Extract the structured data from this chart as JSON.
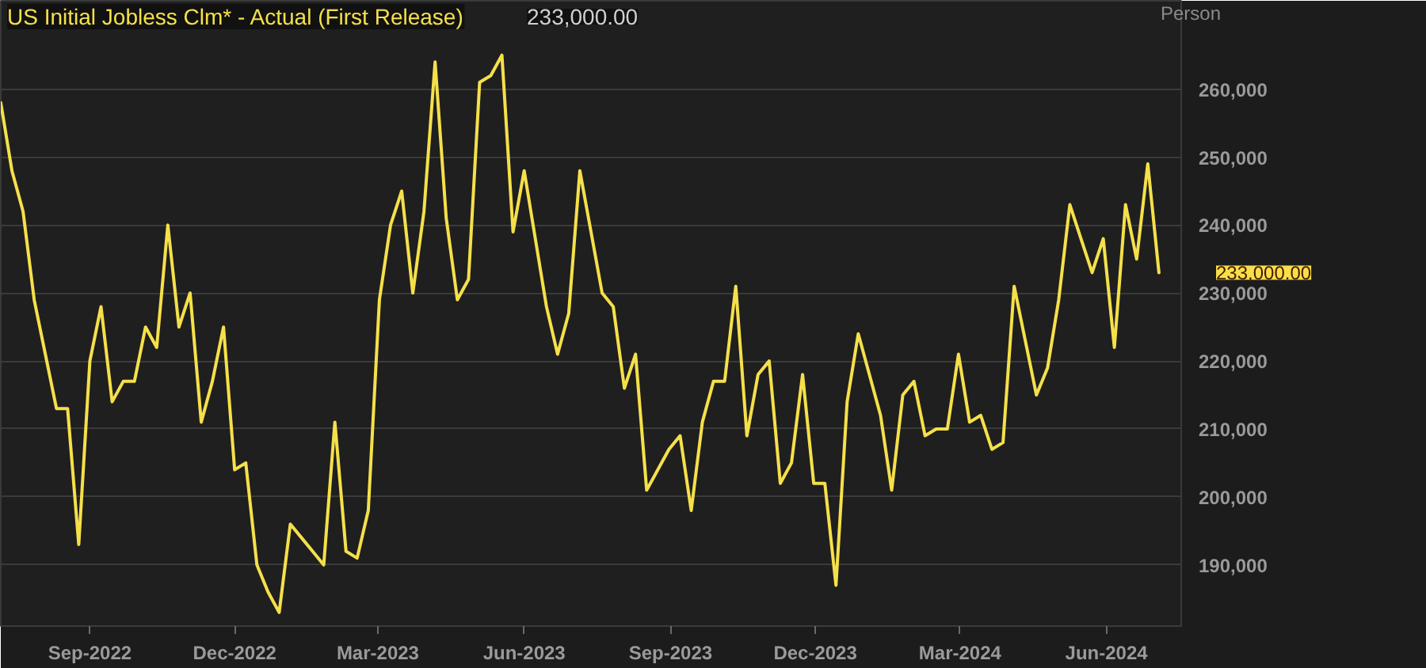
{
  "chart_data": {
    "type": "line",
    "title": "US Initial Jobless Clm* - Actual (First Release)",
    "subtitle": "233,000.00",
    "ylabel": "Person",
    "x": [
      "2022-07-07",
      "2022-07-14",
      "2022-07-21",
      "2022-07-28",
      "2022-08-04",
      "2022-08-11",
      "2022-08-18",
      "2022-08-25",
      "2022-09-01",
      "2022-09-08",
      "2022-09-15",
      "2022-09-22",
      "2022-09-29",
      "2022-10-06",
      "2022-10-13",
      "2022-10-20",
      "2022-10-27",
      "2022-11-03",
      "2022-11-10",
      "2022-11-17",
      "2022-11-24",
      "2022-12-01",
      "2022-12-08",
      "2022-12-15",
      "2022-12-22",
      "2022-12-29",
      "2023-01-05",
      "2023-01-12",
      "2023-01-19",
      "2023-01-26",
      "2023-02-02",
      "2023-02-09",
      "2023-02-16",
      "2023-02-23",
      "2023-03-02",
      "2023-03-09",
      "2023-03-16",
      "2023-03-23",
      "2023-03-30",
      "2023-04-06",
      "2023-04-13",
      "2023-04-20",
      "2023-04-27",
      "2023-05-04",
      "2023-05-11",
      "2023-05-18",
      "2023-05-25",
      "2023-06-01",
      "2023-06-08",
      "2023-06-15",
      "2023-06-22",
      "2023-06-29",
      "2023-07-06",
      "2023-07-13",
      "2023-07-20",
      "2023-07-27",
      "2023-08-03",
      "2023-08-10",
      "2023-08-17",
      "2023-08-24",
      "2023-08-31",
      "2023-09-07",
      "2023-09-14",
      "2023-09-21",
      "2023-09-28",
      "2023-10-05",
      "2023-10-12",
      "2023-10-19",
      "2023-10-26",
      "2023-11-02",
      "2023-11-09",
      "2023-11-16",
      "2023-11-23",
      "2023-11-30",
      "2023-12-07",
      "2023-12-14",
      "2023-12-21",
      "2023-12-28",
      "2024-01-04",
      "2024-01-11",
      "2024-01-18",
      "2024-01-25",
      "2024-02-01",
      "2024-02-08",
      "2024-02-15",
      "2024-02-22",
      "2024-02-29",
      "2024-03-07",
      "2024-03-14",
      "2024-03-21",
      "2024-03-28",
      "2024-04-04",
      "2024-04-11",
      "2024-04-18",
      "2024-04-25",
      "2024-05-02",
      "2024-05-09",
      "2024-05-16",
      "2024-05-23",
      "2024-05-30",
      "2024-06-06",
      "2024-06-13",
      "2024-06-20",
      "2024-06-27",
      "2024-07-04"
    ],
    "series": [
      {
        "color": "#f5e04a",
        "values": [
          258000,
          248000,
          242000,
          229000,
          221000,
          213000,
          213000,
          193000,
          220000,
          228000,
          214000,
          217000,
          217000,
          225000,
          222000,
          240000,
          225000,
          230000,
          211000,
          217000,
          225000,
          204000,
          205000,
          190000,
          186000,
          183000,
          196000,
          194000,
          192000,
          190000,
          211000,
          192000,
          191000,
          198000,
          229000,
          240000,
          245000,
          230000,
          242000,
          264000,
          241000,
          229000,
          232000,
          261000,
          262000,
          265000,
          239000,
          248000,
          238000,
          228000,
          221000,
          227000,
          248000,
          239000,
          230000,
          228000,
          216000,
          221000,
          201000,
          204000,
          207000,
          209000,
          198000,
          211000,
          217000,
          217000,
          231000,
          209000,
          218000,
          220000,
          202000,
          205000,
          218000,
          202000,
          202000,
          187000,
          214000,
          224000,
          218000,
          212000,
          201000,
          215000,
          217000,
          209000,
          210000,
          210000,
          221000,
          211000,
          212000,
          207000,
          208000,
          231000,
          223000,
          215000,
          219000,
          229000,
          243000,
          238000,
          233000,
          238000,
          222000,
          243000,
          235000,
          249000,
          233000
        ]
      }
    ],
    "annotations": [
      "233,000.00"
    ],
    "xlim": [
      "2022-07-07",
      "2024-07-18"
    ],
    "xticks": [
      {
        "value": "2022-09-01",
        "label": "Sep-2022"
      },
      {
        "value": "2022-12-01",
        "label": "Dec-2022"
      },
      {
        "value": "2023-03-01",
        "label": "Mar-2023"
      },
      {
        "value": "2023-06-01",
        "label": "Jun-2023"
      },
      {
        "value": "2023-09-01",
        "label": "Sep-2023"
      },
      {
        "value": "2023-12-01",
        "label": "Dec-2023"
      },
      {
        "value": "2024-03-01",
        "label": "Mar-2024"
      },
      {
        "value": "2024-06-01",
        "label": "Jun-2024"
      }
    ],
    "ylim": [
      181000,
      273000
    ],
    "yticks": [
      {
        "value": 190000,
        "label": "190,000"
      },
      {
        "value": 200000,
        "label": "200,000"
      },
      {
        "value": 210000,
        "label": "210,000"
      },
      {
        "value": 220000,
        "label": "220,000"
      },
      {
        "value": 230000,
        "label": "230,000"
      },
      {
        "value": 240000,
        "label": "240,000"
      },
      {
        "value": 250000,
        "label": "250,000"
      },
      {
        "value": 260000,
        "label": "260,000"
      }
    ],
    "grid": "y",
    "marker": "none",
    "line_style": "solid"
  }
}
